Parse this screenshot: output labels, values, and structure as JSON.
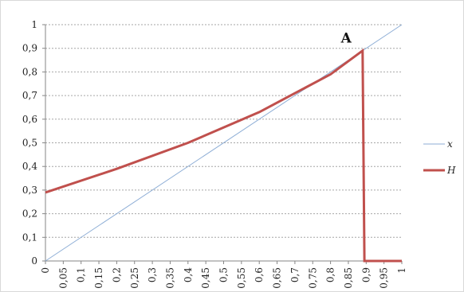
{
  "chart_data": {
    "type": "line",
    "title": "",
    "xlabel": "",
    "ylabel": "",
    "xlim": [
      0,
      1
    ],
    "ylim": [
      0,
      1
    ],
    "grid": true,
    "legend_position": "right",
    "x_tick_labels": [
      "0",
      "0,05",
      "0,1",
      "0,15",
      "0,2",
      "0,25",
      "0,3",
      "0,35",
      "0,4",
      "0,45",
      "0,5",
      "0,55",
      "0,6",
      "0,65",
      "0,7",
      "0,75",
      "0,8",
      "0,85",
      "0,9",
      "0,95",
      "1"
    ],
    "y_tick_labels": [
      "0",
      "0,1",
      "0,2",
      "0,3",
      "0,4",
      "0,5",
      "0,6",
      "0,7",
      "0,8",
      "0,9",
      "1"
    ],
    "series": [
      {
        "name": "x",
        "color": "#8eaed6",
        "points": [
          [
            0,
            0
          ],
          [
            1,
            1
          ]
        ]
      },
      {
        "name": "H",
        "color": "#c0504d",
        "points": [
          [
            0,
            0.29
          ],
          [
            0.2,
            0.39
          ],
          [
            0.4,
            0.5
          ],
          [
            0.6,
            0.63
          ],
          [
            0.8,
            0.79
          ],
          [
            0.89,
            0.89
          ],
          [
            0.895,
            0.0
          ],
          [
            1,
            0.0
          ]
        ]
      }
    ],
    "annotations": [
      {
        "text": "A",
        "x": 0.89,
        "y": 0.89
      }
    ]
  }
}
